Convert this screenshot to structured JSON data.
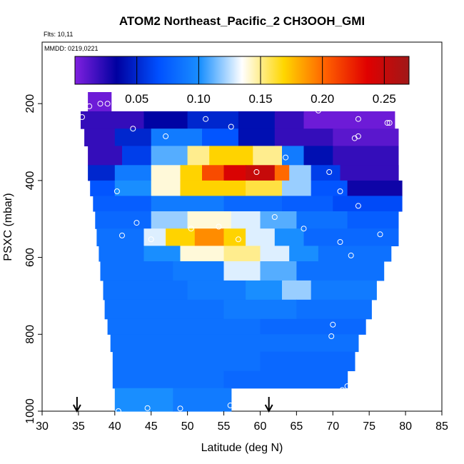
{
  "chart_data": {
    "type": "heatmap",
    "title": "ATOM2 Northeast_Pacific_2 CH3OOH_GMI",
    "annotations": [
      "Flts: 10,11",
      "MMDD: 0219,0221"
    ],
    "xlabel": "Latitude (deg N)",
    "ylabel": "PSXC (mbar)",
    "xlim": [
      30,
      85
    ],
    "ylim": [
      1000,
      40
    ],
    "x_ticks": [
      30,
      35,
      40,
      45,
      50,
      55,
      60,
      65,
      70,
      75,
      80,
      85
    ],
    "x_tick_labels": [
      "30",
      "35",
      "40",
      "45",
      "50",
      "55",
      "60",
      "65",
      "70",
      "75",
      "80",
      "85"
    ],
    "y_ticks": [
      200,
      400,
      600,
      800,
      1000
    ],
    "y_tick_labels": [
      "200",
      "400",
      "600",
      "800",
      "1000"
    ],
    "y_reversed": true,
    "colorbar": {
      "range": [
        0.0,
        0.27
      ],
      "ticks": [
        0.05,
        0.1,
        0.15,
        0.2,
        0.25
      ],
      "tick_labels": [
        "0.05",
        "0.10",
        "0.15",
        "0.20",
        "0.25"
      ],
      "colors": [
        "#8020e0",
        "#0000a0",
        "#0050ff",
        "#1a90ff",
        "#ffffff",
        "#ffd700",
        "#ff6000",
        "#e00000",
        "#a01818"
      ]
    },
    "flight_arrows_lat": [
      34.8,
      61.2
    ],
    "bands": [
      {
        "p_top": 170,
        "p_bot": 220,
        "lat_min": 36.3,
        "lat_max": 39.5,
        "segments": [
          [
            36.3,
            39.5,
            0.005
          ]
        ]
      },
      {
        "p_top": 220,
        "p_bot": 265,
        "lat_min": 35.3,
        "lat_max": 78.5,
        "segments": [
          [
            35.3,
            44,
            0.02
          ],
          [
            44,
            50,
            0.035
          ],
          [
            50,
            57,
            0.05
          ],
          [
            57,
            62,
            0.04
          ],
          [
            62,
            66,
            0.02
          ],
          [
            66,
            78.5,
            0.005
          ]
        ]
      },
      {
        "p_top": 265,
        "p_bot": 310,
        "lat_min": 35.8,
        "lat_max": 79,
        "segments": [
          [
            35.8,
            40,
            0.02
          ],
          [
            40,
            45,
            0.05
          ],
          [
            45,
            52,
            0.09
          ],
          [
            52,
            57,
            0.07
          ],
          [
            57,
            62,
            0.04
          ],
          [
            62,
            70,
            0.02
          ],
          [
            70,
            79,
            0.01
          ]
        ]
      },
      {
        "p_top": 310,
        "p_bot": 360,
        "lat_min": 36.3,
        "lat_max": 79,
        "segments": [
          [
            36.3,
            41,
            0.02
          ],
          [
            41,
            45,
            0.06
          ],
          [
            45,
            50,
            0.11
          ],
          [
            50,
            53,
            0.15
          ],
          [
            53,
            59,
            0.17
          ],
          [
            59,
            63,
            0.15
          ],
          [
            63,
            66,
            0.09
          ],
          [
            66,
            70,
            0.04
          ],
          [
            70,
            79,
            0.02
          ]
        ]
      },
      {
        "p_top": 360,
        "p_bot": 400,
        "lat_min": 36.3,
        "lat_max": 79,
        "segments": [
          [
            36.3,
            40,
            0.05
          ],
          [
            40,
            45,
            0.09
          ],
          [
            45,
            49,
            0.14
          ],
          [
            49,
            52,
            0.17
          ],
          [
            52,
            55,
            0.21
          ],
          [
            55,
            58,
            0.24
          ],
          [
            58,
            62,
            0.25
          ],
          [
            62,
            64,
            0.2
          ],
          [
            64,
            67,
            0.12
          ],
          [
            67,
            71,
            0.06
          ],
          [
            71,
            79,
            0.02
          ]
        ]
      },
      {
        "p_top": 400,
        "p_bot": 440,
        "lat_min": 36.6,
        "lat_max": 79.5,
        "segments": [
          [
            36.6,
            40,
            0.07
          ],
          [
            40,
            45,
            0.1
          ],
          [
            45,
            49,
            0.14
          ],
          [
            49,
            58,
            0.17
          ],
          [
            58,
            63,
            0.16
          ],
          [
            63,
            67,
            0.12
          ],
          [
            67,
            72,
            0.07
          ],
          [
            72,
            79.5,
            0.03
          ]
        ]
      },
      {
        "p_top": 440,
        "p_bot": 480,
        "lat_min": 37,
        "lat_max": 79.5,
        "segments": [
          [
            37,
            45,
            0.075
          ],
          [
            45,
            55,
            0.09
          ],
          [
            55,
            63,
            0.08
          ],
          [
            63,
            70,
            0.075
          ],
          [
            70,
            79.5,
            0.065
          ]
        ]
      },
      {
        "p_top": 480,
        "p_bot": 525,
        "lat_min": 37.3,
        "lat_max": 79,
        "segments": [
          [
            37.3,
            45,
            0.08
          ],
          [
            45,
            50,
            0.12
          ],
          [
            50,
            56,
            0.14
          ],
          [
            56,
            60,
            0.13
          ],
          [
            60,
            65,
            0.11
          ],
          [
            65,
            72,
            0.085
          ],
          [
            72,
            79,
            0.075
          ]
        ]
      },
      {
        "p_top": 525,
        "p_bot": 570,
        "lat_min": 37.5,
        "lat_max": 79,
        "segments": [
          [
            37.5,
            44,
            0.085
          ],
          [
            44,
            47,
            0.13
          ],
          [
            47,
            51,
            0.17
          ],
          [
            51,
            55,
            0.19
          ],
          [
            55,
            58,
            0.17
          ],
          [
            58,
            62,
            0.13
          ],
          [
            62,
            66,
            0.1
          ],
          [
            66,
            79,
            0.08
          ]
        ]
      },
      {
        "p_top": 570,
        "p_bot": 610,
        "lat_min": 37.8,
        "lat_max": 78,
        "segments": [
          [
            37.8,
            44,
            0.085
          ],
          [
            44,
            49,
            0.1
          ],
          [
            49,
            55,
            0.14
          ],
          [
            55,
            60,
            0.15
          ],
          [
            60,
            64,
            0.13
          ],
          [
            64,
            68,
            0.1
          ],
          [
            68,
            78,
            0.085
          ]
        ]
      },
      {
        "p_top": 610,
        "p_bot": 660,
        "lat_min": 38,
        "lat_max": 77,
        "segments": [
          [
            38,
            48,
            0.085
          ],
          [
            48,
            55,
            0.09
          ],
          [
            55,
            60,
            0.13
          ],
          [
            60,
            65,
            0.11
          ],
          [
            65,
            77,
            0.085
          ]
        ]
      },
      {
        "p_top": 660,
        "p_bot": 710,
        "lat_min": 38.4,
        "lat_max": 76,
        "segments": [
          [
            38.4,
            50,
            0.085
          ],
          [
            50,
            58,
            0.09
          ],
          [
            58,
            63,
            0.1
          ],
          [
            63,
            67,
            0.12
          ],
          [
            67,
            76,
            0.09
          ]
        ]
      },
      {
        "p_top": 710,
        "p_bot": 760,
        "lat_min": 38.6,
        "lat_max": 75.3,
        "segments": [
          [
            38.6,
            55,
            0.085
          ],
          [
            55,
            65,
            0.09
          ],
          [
            65,
            75.3,
            0.085
          ]
        ]
      },
      {
        "p_top": 760,
        "p_bot": 800,
        "lat_min": 39,
        "lat_max": 74.5,
        "segments": [
          [
            39,
            60,
            0.085
          ],
          [
            60,
            74.5,
            0.08
          ]
        ]
      },
      {
        "p_top": 800,
        "p_bot": 845,
        "lat_min": 39.4,
        "lat_max": 73.5,
        "segments": [
          [
            39.4,
            73.5,
            0.085
          ]
        ]
      },
      {
        "p_top": 845,
        "p_bot": 895,
        "lat_min": 39.7,
        "lat_max": 73,
        "segments": [
          [
            39.7,
            60,
            0.085
          ],
          [
            60,
            73,
            0.08
          ]
        ]
      },
      {
        "p_top": 895,
        "p_bot": 940,
        "lat_min": 39.7,
        "lat_max": 72,
        "segments": [
          [
            39.7,
            55,
            0.085
          ],
          [
            55,
            72,
            0.08
          ]
        ]
      },
      {
        "p_top": 940,
        "p_bot": 1000,
        "lat_min": 40,
        "lat_max": 56,
        "segments": [
          [
            40,
            48,
            0.1
          ],
          [
            48,
            56,
            0.09
          ]
        ]
      }
    ],
    "points": [
      [
        35.5,
        235
      ],
      [
        36.5,
        207
      ],
      [
        38.0,
        200
      ],
      [
        39.0,
        200
      ],
      [
        42.5,
        265
      ],
      [
        47.0,
        285
      ],
      [
        52.5,
        240
      ],
      [
        56.0,
        260
      ],
      [
        68.0,
        218
      ],
      [
        73.5,
        240
      ],
      [
        77.5,
        250
      ],
      [
        77.8,
        250
      ],
      [
        73.5,
        285
      ],
      [
        73.0,
        290
      ],
      [
        63.5,
        340
      ],
      [
        59.5,
        378
      ],
      [
        69.5,
        378
      ],
      [
        40.3,
        428
      ],
      [
        71.0,
        428
      ],
      [
        73.5,
        466
      ],
      [
        80.0,
        466
      ],
      [
        62.0,
        495
      ],
      [
        43.0,
        510
      ],
      [
        66.0,
        525
      ],
      [
        54.3,
        520
      ],
      [
        50.5,
        525
      ],
      [
        41.0,
        543
      ],
      [
        45.0,
        553
      ],
      [
        57.0,
        553
      ],
      [
        76.5,
        540
      ],
      [
        71.0,
        560
      ],
      [
        72.5,
        595
      ],
      [
        70.0,
        775
      ],
      [
        69.8,
        805
      ],
      [
        70.0,
        950
      ],
      [
        71.3,
        945
      ],
      [
        72.0,
        935
      ],
      [
        44.5,
        992
      ],
      [
        49.0,
        993
      ],
      [
        55.9,
        985
      ],
      [
        40.5,
        1000
      ]
    ]
  }
}
